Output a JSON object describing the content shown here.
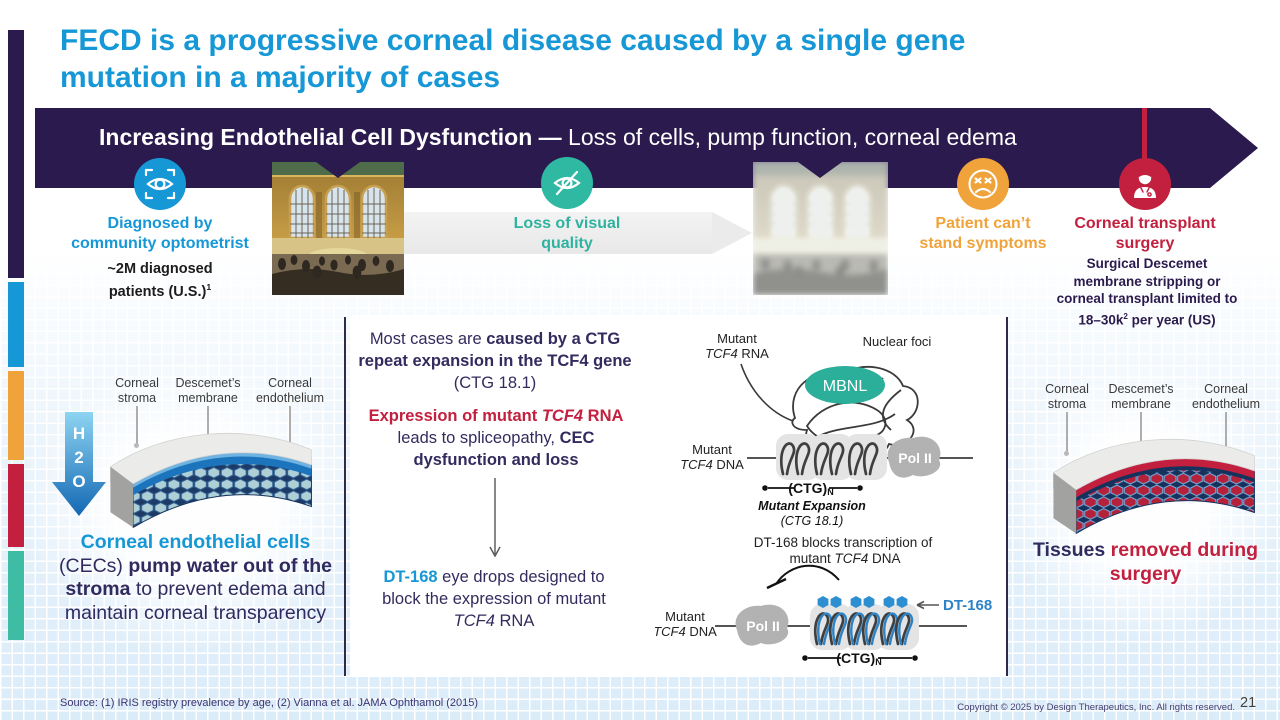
{
  "title": {
    "line1": "FECD is a progressive corneal disease caused by a single gene",
    "line2": "mutation in a majority of cases"
  },
  "banner": {
    "bold": "Increasing Endothelial Cell Dysfunction — ",
    "regular": "Loss of cells, pump function, corneal edema"
  },
  "colors": {
    "blue": "#1697D6",
    "purple": "#2B1A4D",
    "teal": "#2FB3A0",
    "orange": "#F0A33A",
    "crimson": "#C2203E"
  },
  "icons": {
    "stage1": "eye-scan-icon",
    "stage2": "eye-off-icon",
    "stage3": "sad-face-icon",
    "stage4": "surgeon-icon"
  },
  "stages": {
    "diagnosed": {
      "label": [
        "Diagnosed by",
        "community optometrist"
      ],
      "sub_l1": "~2M diagnosed",
      "sub_l2": "patients (U.S.)",
      "sub_sup": "1"
    },
    "loss": {
      "label": [
        "Loss of visual",
        "quality"
      ]
    },
    "patient": {
      "label": [
        "Patient can’t",
        "stand symptoms"
      ]
    },
    "surgery": {
      "label": [
        "Corneal transplant",
        "surgery"
      ],
      "sub": [
        "Surgical Descemet",
        "membrane stripping or",
        "corneal transplant limited to"
      ],
      "sub4a": "18–30k",
      "sub4sup": "2",
      "sub4b": " per year (US)"
    }
  },
  "cornea_labels": {
    "stroma": [
      "Corneal",
      "stroma"
    ],
    "membrane": [
      "Descemet’s",
      "membrane"
    ],
    "endothelium": [
      "Corneal",
      "endothelium"
    ]
  },
  "left_panel": {
    "h2o": [
      "H",
      "2",
      "O"
    ],
    "caption": {
      "s1": "Corneal endothelial cells",
      "s2": "(CECs) ",
      "s3": "pump water out of the stroma",
      "s4": " to prevent edema and maintain corneal transparency"
    }
  },
  "mid": {
    "p1a": "Most cases are ",
    "p1b": "caused by a CTG repeat expansion in the TCF4 gene",
    "p1c": " (CTG 18.1)",
    "p2a": "Expression of mutant ",
    "p2b": "TCF4",
    "p2c": " RNA",
    "p2d": " leads to spliceopathy, ",
    "p2e": "CEC dysfunction and loss",
    "p3a": "DT-168",
    "p3b": " eye drops designed to block the expression of mutant ",
    "p3c": "TCF4",
    "p3d": " RNA"
  },
  "diagram": {
    "rna1": "Mutant",
    "rna2i": "TCF4",
    "rna2": " RNA",
    "foci": "Nuclear foci",
    "mbnl": "MBNL",
    "dna1": "Mutant",
    "dna2i": "TCF4",
    "dna2": " DNA",
    "pol": "Pol II",
    "ctg": "(CTG)",
    "ctgsub": "N",
    "exp1": "Mutant Expansion",
    "exp2": "(CTG 18.1)",
    "blk1": "DT-168 blocks transcription of",
    "blk2a": "mutant ",
    "blk2i": "TCF4",
    "blk2b": " DNA",
    "dt": "DT-168"
  },
  "right_panel": {
    "caption_s1": "Tissues ",
    "caption_s2": "removed during surgery"
  },
  "footer": {
    "source": "Source: (1) IRIS registry prevalence by age, (2) Vianna et al. JAMA Ophthamol (2015)",
    "copyright": "Copyright © 2025 by Design Therapeutics, Inc. All rights reserved.",
    "page": "21"
  }
}
